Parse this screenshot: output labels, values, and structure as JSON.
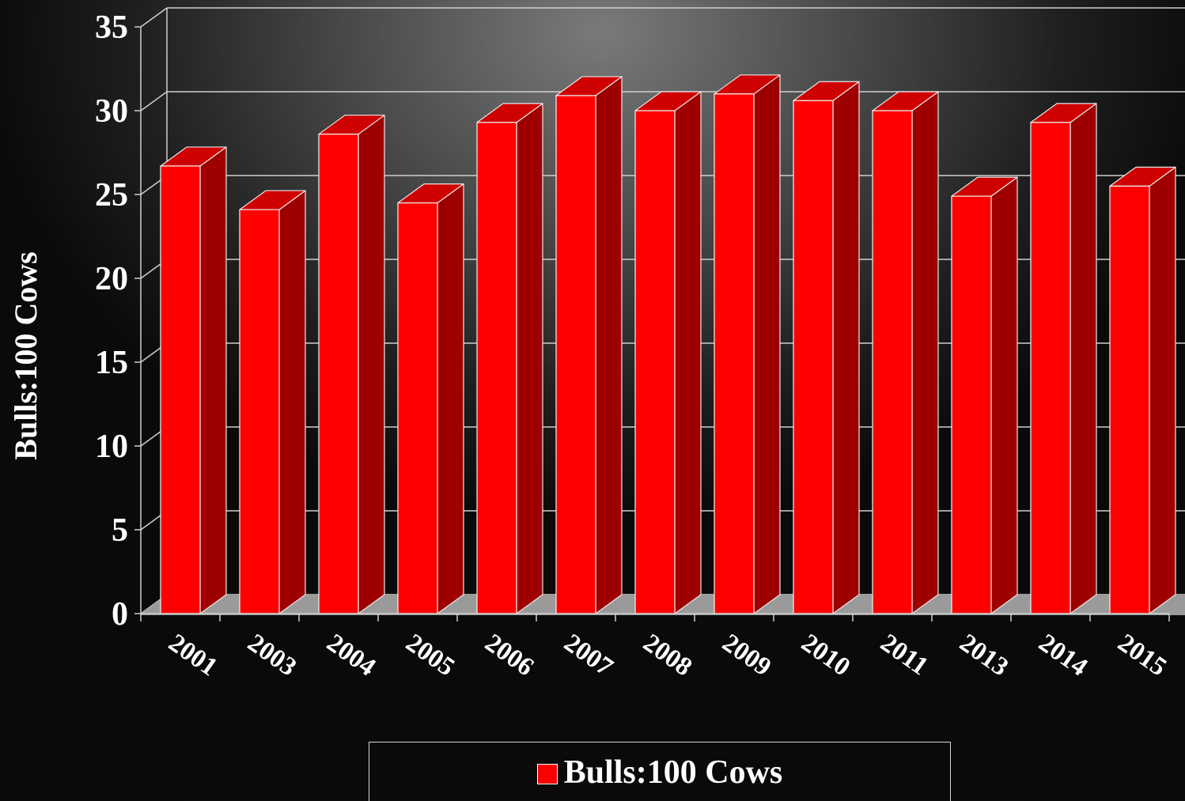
{
  "chart_data": {
    "type": "bar",
    "style": "3d-column",
    "categories": [
      "2001",
      "2003",
      "2004",
      "2005",
      "2006",
      "2007",
      "2008",
      "2009",
      "2010",
      "2011",
      "2013",
      "2014",
      "2015"
    ],
    "series": [
      {
        "name": "Bulls:100 Cows",
        "values": [
          26.7,
          24.1,
          28.6,
          24.5,
          29.3,
          30.9,
          30.0,
          31.0,
          30.6,
          30.0,
          24.9,
          29.3,
          25.5
        ]
      }
    ],
    "ylabel": "Bulls:100 Cows",
    "xlabel": "",
    "ylim": [
      0,
      35
    ],
    "yticks": [
      "0",
      "5",
      "10",
      "15",
      "20",
      "25",
      "30",
      "35"
    ],
    "grid": true,
    "legend": {
      "position": "bottom",
      "label": "Bulls:100 Cows"
    },
    "colors": {
      "bar_front": "#ff0000",
      "bar_side": "#9e0000",
      "bar_top": "#cf0000",
      "gridline": "#cfcfcf",
      "text": "#ffffff"
    }
  }
}
